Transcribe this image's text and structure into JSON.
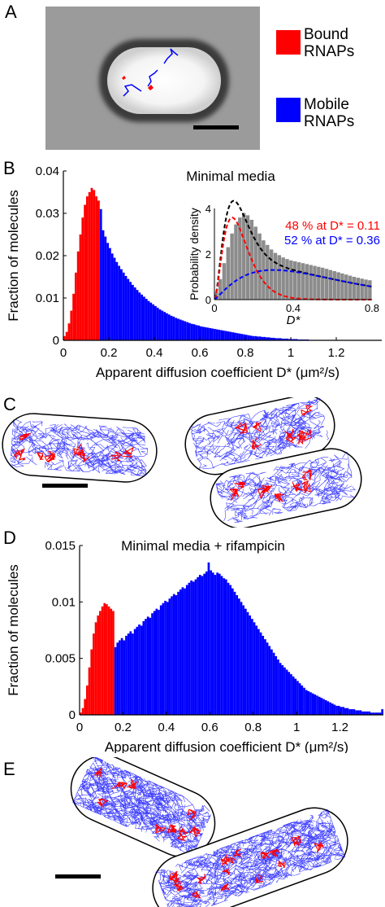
{
  "panels": {
    "a": "A",
    "b": "B",
    "c": "C",
    "d": "D",
    "e": "E"
  },
  "legend": {
    "bound_line1": "Bound",
    "bound_line2": "RNAPs",
    "mobile_line1": "Mobile",
    "mobile_line2": "RNAPs",
    "bound_color": "#ff0000",
    "mobile_color": "#0000ff"
  },
  "colors": {
    "bound": "#ff0000",
    "mobile": "#0000ff",
    "cell_gray": "#9b9b9b",
    "histogram_gray": "#8c8c8c",
    "fit_black": "#000000"
  },
  "chart_data": [
    {
      "type": "bar",
      "panel": "B",
      "title": "Minimal media",
      "xlabel": "Apparent diffusion coefficient D* (μm²/s)",
      "ylabel": "Fraction of molecules",
      "xlim": [
        0,
        1.4
      ],
      "ylim": [
        0,
        0.04
      ],
      "xticks": [
        "0",
        "0.2",
        "0.4",
        "0.6",
        "0.8",
        "1",
        "1.2"
      ],
      "yticks": [
        "0",
        "0.01",
        "0.02",
        "0.03",
        "0.04"
      ],
      "threshold": 0.16,
      "bin_width": 0.01,
      "values": [
        0.001,
        0.002,
        0.004,
        0.007,
        0.011,
        0.016,
        0.021,
        0.025,
        0.029,
        0.032,
        0.034,
        0.035,
        0.036,
        0.0355,
        0.034,
        0.033,
        0.031,
        0.026,
        0.0245,
        0.023,
        0.0218,
        0.0205,
        0.0195,
        0.0185,
        0.0176,
        0.0168,
        0.016,
        0.0152,
        0.0145,
        0.0138,
        0.0131,
        0.0125,
        0.0119,
        0.0113,
        0.0108,
        0.0103,
        0.0098,
        0.0093,
        0.0089,
        0.0085,
        0.0081,
        0.0077,
        0.0073,
        0.007,
        0.0067,
        0.0064,
        0.0061,
        0.0058,
        0.0056,
        0.0053,
        0.0051,
        0.0049,
        0.0047,
        0.0045,
        0.0043,
        0.0041,
        0.0039,
        0.0038,
        0.0036,
        0.0035,
        0.0033,
        0.0032,
        0.0031,
        0.003,
        0.0029,
        0.0028,
        0.0027,
        0.0026,
        0.0025,
        0.0024,
        0.0023,
        0.0022,
        0.0021,
        0.002,
        0.0019,
        0.0018,
        0.0017,
        0.0016,
        0.0015,
        0.0014,
        0.0013,
        0.0012,
        0.0011,
        0.001,
        0.001,
        0.0009,
        0.0009,
        0.0008,
        0.0008,
        0.0007,
        0.0007,
        0.0006,
        0.0006,
        0.0005,
        0.0005,
        0.0005,
        0.0004,
        0.0004,
        0.0004,
        0.0003,
        0.0003,
        0.0003,
        0.0003,
        0.0002,
        0.0002,
        0.0002,
        0.0002,
        0.0002,
        0.0001,
        0.0001,
        0.0001,
        0.0001,
        0.0001,
        0.0001,
        0.0001,
        0.0001,
        0.0001,
        0.0001,
        0.0001,
        0.0001
      ],
      "inset": {
        "type": "bar",
        "xlabel": "D*",
        "ylabel": "Probability density",
        "xlim": [
          0,
          0.8
        ],
        "ylim": [
          0,
          4
        ],
        "xticks": [
          "0",
          "0.4",
          "0.8"
        ],
        "yticks": [
          "0",
          "2",
          "4"
        ],
        "annotation_red": "48 % at D* = 0.11",
        "annotation_blue": "52 % at D* = 0.36",
        "values": [
          0.3,
          0.9,
          1.6,
          2.3,
          2.9,
          3.3,
          3.6,
          3.8,
          3.7,
          3.5,
          3.2,
          2.9,
          2.6,
          2.4,
          2.2,
          2.05,
          1.95,
          1.85,
          1.78,
          1.72,
          1.68,
          1.64,
          1.6,
          1.56,
          1.52,
          1.48,
          1.44,
          1.4,
          1.35,
          1.3,
          1.25,
          1.2,
          1.15,
          1.1,
          1.05,
          1.0,
          0.96,
          0.92,
          0.88,
          0.85
        ]
      }
    },
    {
      "type": "bar",
      "panel": "D",
      "title": "Minimal media + rifampicin",
      "xlabel": "Apparent diffusion coefficient D* (μm²/s)",
      "ylabel": "Fraction of molecules",
      "xlim": [
        0,
        1.4
      ],
      "ylim": [
        0,
        0.015
      ],
      "xticks": [
        "0",
        "0.2",
        "0.4",
        "0.6",
        "0.8",
        "1",
        "1.2"
      ],
      "yticks": [
        "0",
        "0.005",
        "0.01",
        "0.015"
      ],
      "threshold": 0.16,
      "bin_width": 0.01,
      "values": [
        0.0002,
        0.0006,
        0.0014,
        0.0026,
        0.0042,
        0.0058,
        0.0072,
        0.0082,
        0.0088,
        0.0092,
        0.0096,
        0.0099,
        0.0098,
        0.0096,
        0.0094,
        0.0092,
        0.006,
        0.0064,
        0.0066,
        0.0068,
        0.0066,
        0.007,
        0.0072,
        0.0074,
        0.0072,
        0.0076,
        0.0078,
        0.008,
        0.0079,
        0.0083,
        0.0085,
        0.0087,
        0.0086,
        0.009,
        0.0092,
        0.0094,
        0.0093,
        0.0097,
        0.0099,
        0.0101,
        0.01,
        0.0103,
        0.0105,
        0.0107,
        0.0106,
        0.0109,
        0.0111,
        0.0113,
        0.0112,
        0.0115,
        0.0117,
        0.0119,
        0.0118,
        0.012,
        0.0122,
        0.0124,
        0.0123,
        0.0125,
        0.0127,
        0.0135,
        0.0128,
        0.0126,
        0.0124,
        0.0126,
        0.0125,
        0.0123,
        0.0121,
        0.012,
        0.0117,
        0.0115,
        0.0112,
        0.0109,
        0.0106,
        0.0103,
        0.01,
        0.0097,
        0.0094,
        0.0091,
        0.0088,
        0.0085,
        0.0082,
        0.0079,
        0.0076,
        0.0073,
        0.007,
        0.0067,
        0.0064,
        0.0061,
        0.0058,
        0.0055,
        0.0052,
        0.0049,
        0.0046,
        0.0044,
        0.0042,
        0.004,
        0.0038,
        0.0036,
        0.0034,
        0.0032,
        0.003,
        0.0028,
        0.0026,
        0.0024,
        0.0022,
        0.0021,
        0.002,
        0.0019,
        0.0018,
        0.0017,
        0.0016,
        0.0015,
        0.0014,
        0.0013,
        0.0012,
        0.0011,
        0.001,
        0.0009,
        0.0008,
        0.0008,
        0.0007,
        0.0007,
        0.0006,
        0.0006,
        0.0005,
        0.0005,
        0.0005,
        0.0004,
        0.0004,
        0.0004,
        0.0003,
        0.0003,
        0.0003,
        0.0003,
        0.0002,
        0.0002,
        0.0002,
        0.0002,
        0.0002,
        0.0005
      ]
    }
  ]
}
